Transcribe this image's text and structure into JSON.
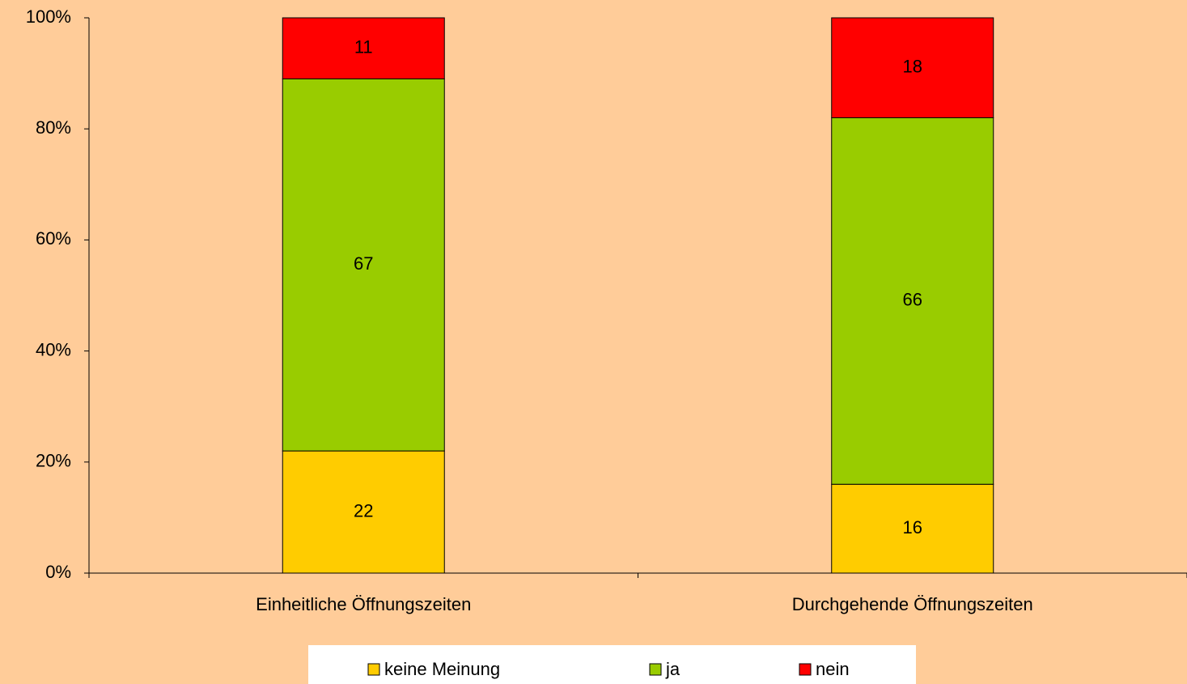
{
  "chart_data": {
    "type": "stacked_bar",
    "categories": [
      "Einheitliche Öffnungszeiten",
      "Durchgehende Öffnungszeiten"
    ],
    "series": [
      {
        "name": "keine Meinung",
        "color": "#ffcc00",
        "values": [
          22,
          16
        ]
      },
      {
        "name": "ja",
        "color": "#99cc00",
        "values": [
          67,
          66
        ]
      },
      {
        "name": "nein",
        "color": "#ff0000",
        "values": [
          11,
          18
        ]
      }
    ],
    "ylim": [
      0,
      100
    ],
    "yticks": [
      {
        "value": 0,
        "label": "0%"
      },
      {
        "value": 20,
        "label": "20%"
      },
      {
        "value": 40,
        "label": "40%"
      },
      {
        "value": 60,
        "label": "60%"
      },
      {
        "value": 80,
        "label": "80%"
      },
      {
        "value": 100,
        "label": "100%"
      }
    ],
    "legend": "bottom"
  }
}
